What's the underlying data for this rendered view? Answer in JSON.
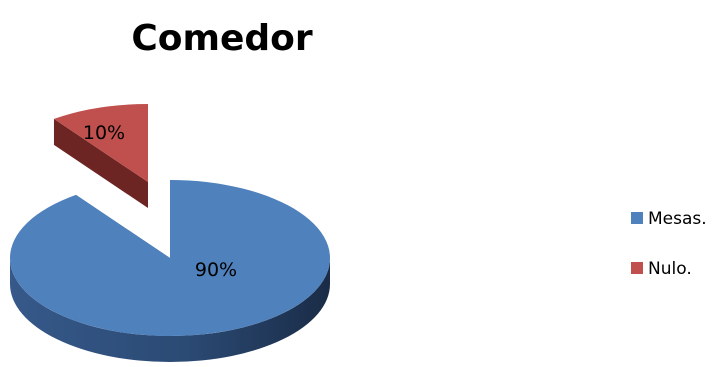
{
  "chart_data": {
    "type": "pie",
    "title": "Comedor",
    "categories": [
      "Mesas.",
      "Nulo."
    ],
    "values": [
      90,
      10
    ],
    "data_labels": [
      "90%",
      "10%"
    ],
    "colors": [
      "#4f81bd",
      "#c0504d"
    ],
    "style": "3d-exploded",
    "legend_position": "right"
  }
}
